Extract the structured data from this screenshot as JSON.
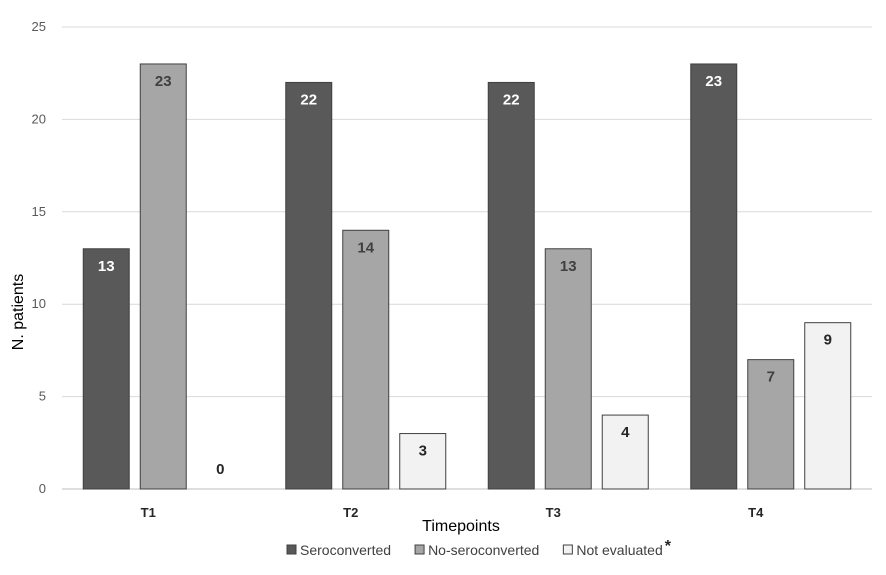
{
  "chart_data": {
    "type": "bar",
    "title": "",
    "xlabel": "Timepoints",
    "ylabel": "N. patients",
    "ylim": [
      0,
      25
    ],
    "yticks": [
      0,
      5,
      10,
      15,
      20,
      25
    ],
    "grid": true,
    "legend_position": "bottom",
    "legend_note": "*",
    "categories": [
      "T1",
      "T2",
      "T3",
      "T4"
    ],
    "series": [
      {
        "name": "Seroconverted",
        "values": [
          13,
          22,
          22,
          23
        ],
        "color": "#595959",
        "label_color": "#ffffff"
      },
      {
        "name": "No-seroconverted",
        "values": [
          23,
          14,
          13,
          7
        ],
        "color": "#a6a6a6",
        "label_color": "#404040"
      },
      {
        "name": "Not evaluated",
        "values": [
          0,
          3,
          4,
          9
        ],
        "color": "#f2f2f2",
        "label_color": "#262626"
      }
    ]
  }
}
